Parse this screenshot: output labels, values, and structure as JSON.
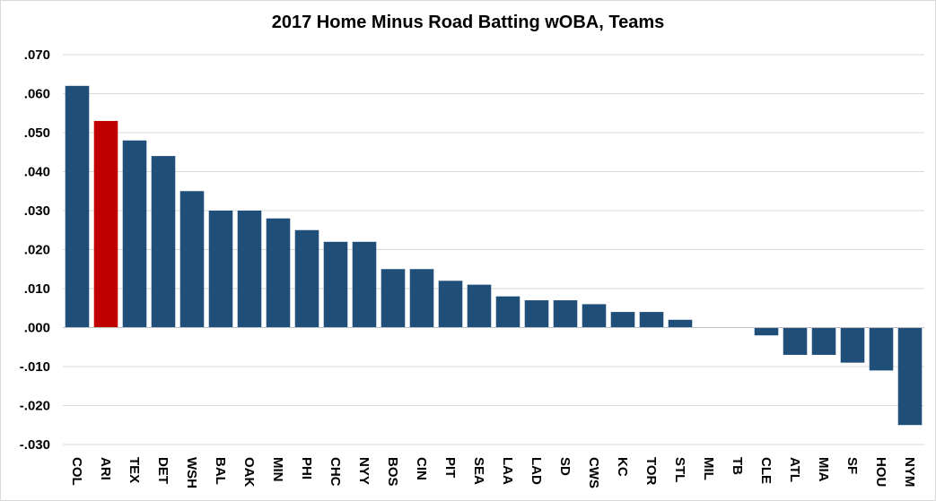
{
  "chart_data": {
    "type": "bar",
    "title": "2017 Home Minus Road Batting wOBA, Teams",
    "xlabel": "",
    "ylabel": "",
    "ylim": [
      -0.03,
      0.07
    ],
    "yticks": [
      ".070",
      ".060",
      ".050",
      ".040",
      ".030",
      ".020",
      ".010",
      ".000",
      "-.010",
      "-.020",
      "-.030"
    ],
    "ytick_values": [
      0.07,
      0.06,
      0.05,
      0.04,
      0.03,
      0.02,
      0.01,
      0.0,
      -0.01,
      -0.02,
      -0.03
    ],
    "grid": true,
    "categories": [
      "COL",
      "ARI",
      "TEX",
      "DET",
      "WSH",
      "BAL",
      "OAK",
      "MIN",
      "PHI",
      "CHC",
      "NYY",
      "BOS",
      "CIN",
      "PIT",
      "SEA",
      "LAA",
      "LAD",
      "SD",
      "CWS",
      "KC",
      "TOR",
      "STL",
      "MIL",
      "TB",
      "CLE",
      "ATL",
      "MIA",
      "SF",
      "HOU",
      "NYM"
    ],
    "values": [
      0.062,
      0.053,
      0.048,
      0.044,
      0.035,
      0.03,
      0.03,
      0.028,
      0.025,
      0.022,
      0.022,
      0.015,
      0.015,
      0.012,
      0.011,
      0.008,
      0.007,
      0.007,
      0.006,
      0.004,
      0.004,
      0.002,
      0.0,
      0.0,
      -0.002,
      -0.007,
      -0.007,
      -0.009,
      -0.011,
      -0.025
    ],
    "colors": {
      "default": "#1f4e79",
      "highlight": "#c00000",
      "grid": "#d9d9d9",
      "axis": "#bfbfbf"
    },
    "highlight_category": "ARI"
  }
}
